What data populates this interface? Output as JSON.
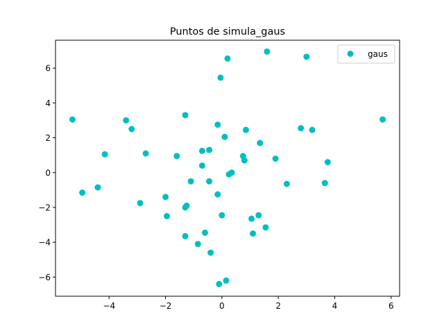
{
  "chart_data": {
    "type": "scatter",
    "title": "Puntos de simula_gaus",
    "xlabel": "",
    "ylabel": "",
    "xlim": [
      -5.9,
      6.3
    ],
    "ylim": [
      -7.1,
      7.6
    ],
    "xticks": [
      -4,
      -2,
      0,
      2,
      4,
      6
    ],
    "yticks": [
      -6,
      -4,
      -2,
      0,
      2,
      4,
      6
    ],
    "xtick_labels": [
      "−4",
      "−2",
      "0",
      "2",
      "4",
      "6"
    ],
    "ytick_labels": [
      "−6",
      "−4",
      "−2",
      "0",
      "2",
      "4",
      "6"
    ],
    "grid": false,
    "legend_position": "top-right",
    "series": [
      {
        "name": "gaus",
        "color": "#00bfbf",
        "points": [
          [
            -5.3,
            3.05
          ],
          [
            -4.95,
            -1.15
          ],
          [
            -4.4,
            -0.85
          ],
          [
            -4.15,
            1.05
          ],
          [
            -3.4,
            3.0
          ],
          [
            -3.2,
            2.5
          ],
          [
            -2.9,
            -1.75
          ],
          [
            -2.7,
            1.1
          ],
          [
            -2.0,
            -1.4
          ],
          [
            -1.95,
            -2.5
          ],
          [
            -1.6,
            0.95
          ],
          [
            -1.3,
            3.3
          ],
          [
            -1.3,
            -2.0
          ],
          [
            -1.25,
            -1.9
          ],
          [
            -1.3,
            -3.65
          ],
          [
            -1.1,
            -0.5
          ],
          [
            -0.85,
            -4.1
          ],
          [
            -0.7,
            1.25
          ],
          [
            -0.7,
            0.4
          ],
          [
            -0.6,
            -3.45
          ],
          [
            -0.45,
            1.3
          ],
          [
            -0.45,
            -0.5
          ],
          [
            -0.4,
            -4.6
          ],
          [
            -0.15,
            2.75
          ],
          [
            -0.15,
            -1.25
          ],
          [
            -0.1,
            -6.4
          ],
          [
            -0.05,
            5.45
          ],
          [
            0.0,
            -2.45
          ],
          [
            0.1,
            2.05
          ],
          [
            0.2,
            6.55
          ],
          [
            0.15,
            -6.2
          ],
          [
            0.25,
            -0.1
          ],
          [
            0.35,
            0.0
          ],
          [
            0.75,
            0.95
          ],
          [
            0.8,
            0.7
          ],
          [
            0.85,
            2.45
          ],
          [
            1.05,
            -2.65
          ],
          [
            1.1,
            -3.5
          ],
          [
            1.3,
            -2.45
          ],
          [
            1.35,
            1.7
          ],
          [
            1.6,
            6.95
          ],
          [
            1.55,
            -3.15
          ],
          [
            1.9,
            0.8
          ],
          [
            2.3,
            -0.65
          ],
          [
            2.8,
            2.55
          ],
          [
            3.0,
            6.65
          ],
          [
            3.2,
            2.45
          ],
          [
            3.65,
            -0.6
          ],
          [
            3.75,
            0.6
          ],
          [
            5.7,
            3.05
          ]
        ]
      }
    ]
  }
}
